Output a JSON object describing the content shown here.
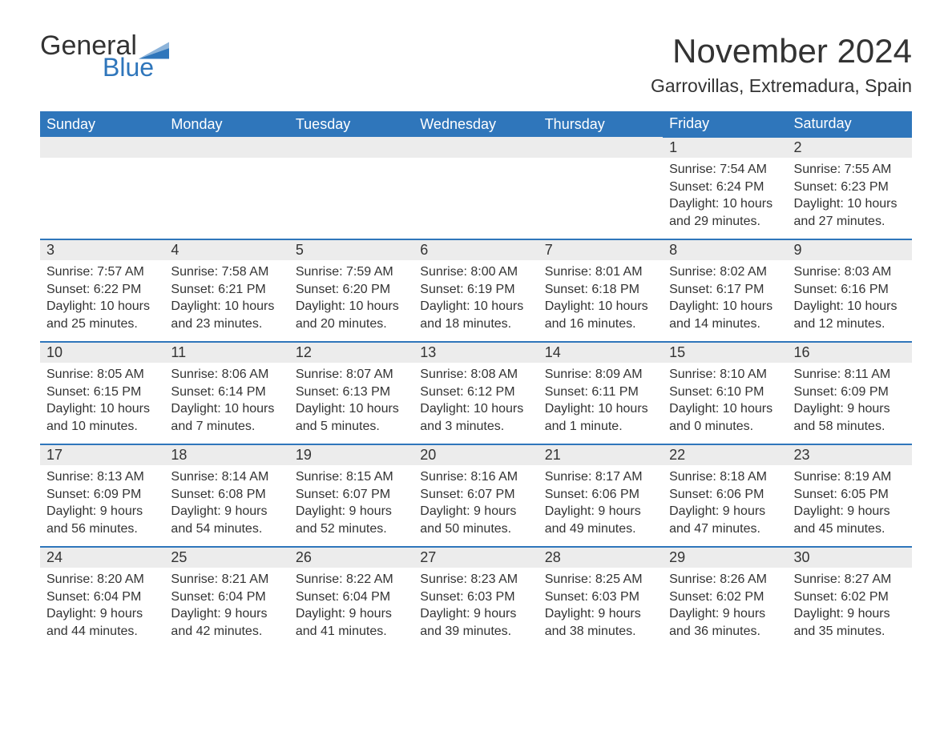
{
  "logo": {
    "general": "General",
    "blue": "Blue",
    "flag_color": "#2f76bb"
  },
  "title": "November 2024",
  "location": "Garrovillas, Extremadura, Spain",
  "colors": {
    "header_bg": "#2f76bb",
    "header_text": "#ffffff",
    "daynum_bg": "#ececec",
    "text": "#333333",
    "row_divider": "#2f76bb",
    "page_bg": "#ffffff"
  },
  "typography": {
    "title_fontsize": 42,
    "location_fontsize": 23,
    "header_fontsize": 18,
    "daynum_fontsize": 18,
    "body_fontsize": 16
  },
  "weekdays": [
    "Sunday",
    "Monday",
    "Tuesday",
    "Wednesday",
    "Thursday",
    "Friday",
    "Saturday"
  ],
  "first_weekday_index": 5,
  "days": [
    {
      "n": 1,
      "sunrise": "7:54 AM",
      "sunset": "6:24 PM",
      "daylight": "10 hours and 29 minutes."
    },
    {
      "n": 2,
      "sunrise": "7:55 AM",
      "sunset": "6:23 PM",
      "daylight": "10 hours and 27 minutes."
    },
    {
      "n": 3,
      "sunrise": "7:57 AM",
      "sunset": "6:22 PM",
      "daylight": "10 hours and 25 minutes."
    },
    {
      "n": 4,
      "sunrise": "7:58 AM",
      "sunset": "6:21 PM",
      "daylight": "10 hours and 23 minutes."
    },
    {
      "n": 5,
      "sunrise": "7:59 AM",
      "sunset": "6:20 PM",
      "daylight": "10 hours and 20 minutes."
    },
    {
      "n": 6,
      "sunrise": "8:00 AM",
      "sunset": "6:19 PM",
      "daylight": "10 hours and 18 minutes."
    },
    {
      "n": 7,
      "sunrise": "8:01 AM",
      "sunset": "6:18 PM",
      "daylight": "10 hours and 16 minutes."
    },
    {
      "n": 8,
      "sunrise": "8:02 AM",
      "sunset": "6:17 PM",
      "daylight": "10 hours and 14 minutes."
    },
    {
      "n": 9,
      "sunrise": "8:03 AM",
      "sunset": "6:16 PM",
      "daylight": "10 hours and 12 minutes."
    },
    {
      "n": 10,
      "sunrise": "8:05 AM",
      "sunset": "6:15 PM",
      "daylight": "10 hours and 10 minutes."
    },
    {
      "n": 11,
      "sunrise": "8:06 AM",
      "sunset": "6:14 PM",
      "daylight": "10 hours and 7 minutes."
    },
    {
      "n": 12,
      "sunrise": "8:07 AM",
      "sunset": "6:13 PM",
      "daylight": "10 hours and 5 minutes."
    },
    {
      "n": 13,
      "sunrise": "8:08 AM",
      "sunset": "6:12 PM",
      "daylight": "10 hours and 3 minutes."
    },
    {
      "n": 14,
      "sunrise": "8:09 AM",
      "sunset": "6:11 PM",
      "daylight": "10 hours and 1 minute."
    },
    {
      "n": 15,
      "sunrise": "8:10 AM",
      "sunset": "6:10 PM",
      "daylight": "10 hours and 0 minutes."
    },
    {
      "n": 16,
      "sunrise": "8:11 AM",
      "sunset": "6:09 PM",
      "daylight": "9 hours and 58 minutes."
    },
    {
      "n": 17,
      "sunrise": "8:13 AM",
      "sunset": "6:09 PM",
      "daylight": "9 hours and 56 minutes."
    },
    {
      "n": 18,
      "sunrise": "8:14 AM",
      "sunset": "6:08 PM",
      "daylight": "9 hours and 54 minutes."
    },
    {
      "n": 19,
      "sunrise": "8:15 AM",
      "sunset": "6:07 PM",
      "daylight": "9 hours and 52 minutes."
    },
    {
      "n": 20,
      "sunrise": "8:16 AM",
      "sunset": "6:07 PM",
      "daylight": "9 hours and 50 minutes."
    },
    {
      "n": 21,
      "sunrise": "8:17 AM",
      "sunset": "6:06 PM",
      "daylight": "9 hours and 49 minutes."
    },
    {
      "n": 22,
      "sunrise": "8:18 AM",
      "sunset": "6:06 PM",
      "daylight": "9 hours and 47 minutes."
    },
    {
      "n": 23,
      "sunrise": "8:19 AM",
      "sunset": "6:05 PM",
      "daylight": "9 hours and 45 minutes."
    },
    {
      "n": 24,
      "sunrise": "8:20 AM",
      "sunset": "6:04 PM",
      "daylight": "9 hours and 44 minutes."
    },
    {
      "n": 25,
      "sunrise": "8:21 AM",
      "sunset": "6:04 PM",
      "daylight": "9 hours and 42 minutes."
    },
    {
      "n": 26,
      "sunrise": "8:22 AM",
      "sunset": "6:04 PM",
      "daylight": "9 hours and 41 minutes."
    },
    {
      "n": 27,
      "sunrise": "8:23 AM",
      "sunset": "6:03 PM",
      "daylight": "9 hours and 39 minutes."
    },
    {
      "n": 28,
      "sunrise": "8:25 AM",
      "sunset": "6:03 PM",
      "daylight": "9 hours and 38 minutes."
    },
    {
      "n": 29,
      "sunrise": "8:26 AM",
      "sunset": "6:02 PM",
      "daylight": "9 hours and 36 minutes."
    },
    {
      "n": 30,
      "sunrise": "8:27 AM",
      "sunset": "6:02 PM",
      "daylight": "9 hours and 35 minutes."
    }
  ],
  "labels": {
    "sunrise": "Sunrise: ",
    "sunset": "Sunset: ",
    "daylight": "Daylight: "
  }
}
